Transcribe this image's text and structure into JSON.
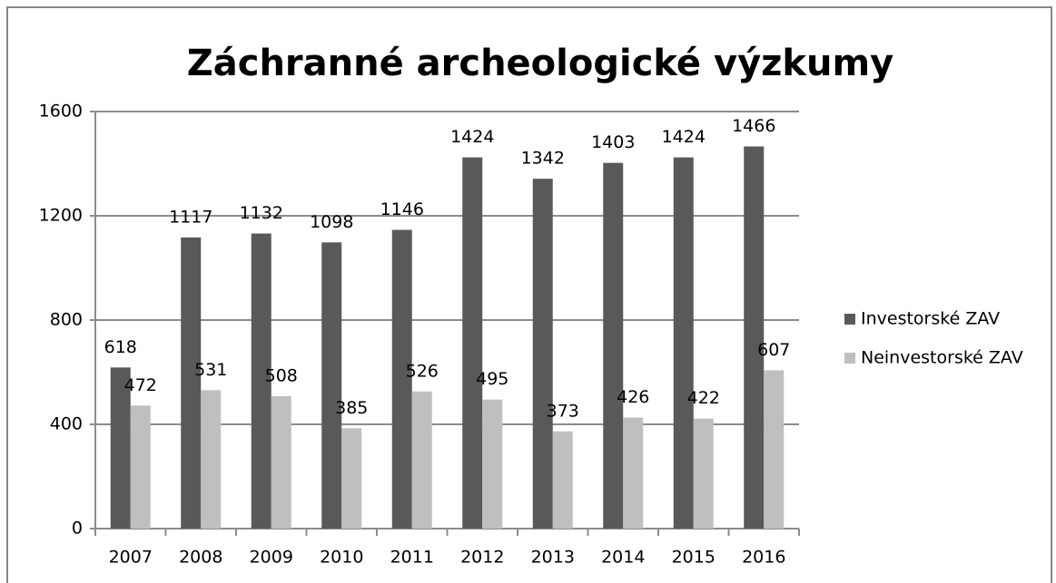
{
  "chart_data": {
    "type": "bar",
    "title": "Záchranné archeologické výzkumy",
    "categories": [
      "2007",
      "2008",
      "2009",
      "2010",
      "2011",
      "2012",
      "2013",
      "2014",
      "2015",
      "2016"
    ],
    "series": [
      {
        "name": "Investorské ZAV",
        "color": "#595959",
        "values": [
          618,
          1117,
          1132,
          1098,
          1146,
          1424,
          1342,
          1403,
          1424,
          1466
        ]
      },
      {
        "name": "Neinvestorské ZAV",
        "color": "#bfbfbf",
        "values": [
          472,
          531,
          508,
          385,
          526,
          495,
          373,
          426,
          422,
          607
        ]
      }
    ],
    "ylim": [
      0,
      1600
    ],
    "yticks": [
      0,
      400,
      800,
      1200,
      1600
    ],
    "grid": true,
    "legend": "right"
  }
}
